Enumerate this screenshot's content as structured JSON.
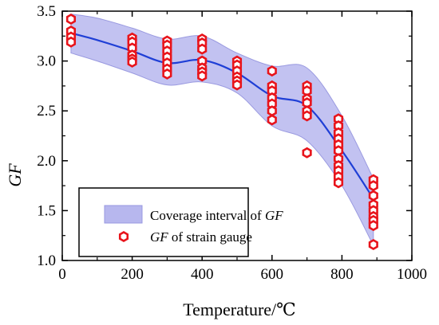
{
  "chart_data": {
    "type": "scatter",
    "xlabel": "Temperature/℃",
    "ylabel": "GF",
    "xlim": [
      0,
      1000
    ],
    "ylim": [
      1.0,
      3.5
    ],
    "x_ticks": [
      0,
      200,
      400,
      600,
      800,
      1000
    ],
    "y_ticks": [
      1.0,
      1.5,
      2.0,
      2.5,
      3.0,
      3.5
    ],
    "x_tick_labels": [
      "0",
      "200",
      "400",
      "600",
      "800",
      "1000"
    ],
    "y_tick_labels": [
      "1.0",
      "1.5",
      "2.0",
      "2.5",
      "3.0",
      "3.5"
    ],
    "grid": false,
    "legend_position": "bottom-left",
    "colors": {
      "band_fill": "#b7b7ee",
      "band_edge": "#9a9ae0",
      "curve": "#1f3fd6",
      "marker": "#e8141b"
    },
    "band": {
      "name": "Coverage interval of GF",
      "x": [
        25,
        100,
        200,
        300,
        400,
        500,
        600,
        700,
        800,
        890
      ],
      "upper": [
        3.47,
        3.43,
        3.33,
        3.22,
        3.25,
        3.08,
        2.95,
        2.93,
        2.45,
        1.82
      ],
      "lower": [
        3.08,
        3.0,
        2.88,
        2.76,
        2.79,
        2.68,
        2.35,
        2.2,
        1.75,
        1.15
      ]
    },
    "fit_curve": {
      "x": [
        25,
        100,
        200,
        300,
        400,
        500,
        600,
        700,
        800,
        890
      ],
      "y": [
        3.28,
        3.21,
        3.1,
        2.98,
        3.01,
        2.88,
        2.65,
        2.55,
        2.1,
        1.62
      ]
    },
    "series": [
      {
        "name": "GF of strain gauge",
        "points": [
          [
            25,
            3.42
          ],
          [
            25,
            3.3
          ],
          [
            25,
            3.24
          ],
          [
            25,
            3.19
          ],
          [
            200,
            3.23
          ],
          [
            200,
            3.19
          ],
          [
            200,
            3.13
          ],
          [
            200,
            3.06
          ],
          [
            200,
            3.02
          ],
          [
            200,
            2.99
          ],
          [
            300,
            3.2
          ],
          [
            300,
            3.16
          ],
          [
            300,
            3.1
          ],
          [
            300,
            3.04
          ],
          [
            300,
            2.98
          ],
          [
            300,
            2.92
          ],
          [
            300,
            2.87
          ],
          [
            400,
            3.22
          ],
          [
            400,
            3.18
          ],
          [
            400,
            3.12
          ],
          [
            400,
            3.0
          ],
          [
            400,
            2.93
          ],
          [
            400,
            2.89
          ],
          [
            400,
            2.85
          ],
          [
            500,
            3.0
          ],
          [
            500,
            2.96
          ],
          [
            500,
            2.9
          ],
          [
            500,
            2.84
          ],
          [
            500,
            2.8
          ],
          [
            500,
            2.76
          ],
          [
            600,
            2.9
          ],
          [
            600,
            2.75
          ],
          [
            600,
            2.7
          ],
          [
            600,
            2.63
          ],
          [
            600,
            2.57
          ],
          [
            600,
            2.5
          ],
          [
            600,
            2.41
          ],
          [
            700,
            2.75
          ],
          [
            700,
            2.7
          ],
          [
            700,
            2.62
          ],
          [
            700,
            2.58
          ],
          [
            700,
            2.5
          ],
          [
            700,
            2.45
          ],
          [
            700,
            2.08
          ],
          [
            790,
            2.42
          ],
          [
            790,
            2.35
          ],
          [
            790,
            2.28
          ],
          [
            790,
            2.22
          ],
          [
            790,
            2.16
          ],
          [
            790,
            2.1
          ],
          [
            790,
            2.02
          ],
          [
            790,
            1.95
          ],
          [
            790,
            1.9
          ],
          [
            790,
            1.84
          ],
          [
            790,
            1.78
          ],
          [
            890,
            1.81
          ],
          [
            890,
            1.75
          ],
          [
            890,
            1.65
          ],
          [
            890,
            1.56
          ],
          [
            890,
            1.5
          ],
          [
            890,
            1.44
          ],
          [
            890,
            1.4
          ],
          [
            890,
            1.35
          ],
          [
            890,
            1.16
          ]
        ]
      }
    ],
    "legend": [
      {
        "key": "band",
        "label_italic": "GF",
        "label_pre": "Coverage interval of ",
        "label_post": ""
      },
      {
        "key": "markers",
        "label_italic": "GF",
        "label_pre": "",
        "label_post": " of strain gauge"
      }
    ]
  }
}
